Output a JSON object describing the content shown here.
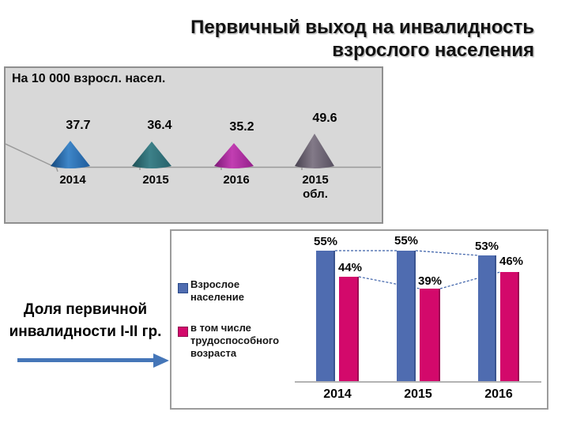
{
  "title": {
    "line1": "Первичный выход на инвалидность",
    "line2": "взрослого населения"
  },
  "rate_panel": {
    "caption": "На 10 000 взросл. насел.",
    "items": [
      {
        "value": "37.7",
        "year": "2014",
        "color": "#2d6fae"
      },
      {
        "value": "36.4",
        "year": "2015",
        "color": "#2f6f74"
      },
      {
        "value": "35.2",
        "year": "2016",
        "color": "#a82ba0"
      },
      {
        "value": "49.6",
        "year": "2015 обл.",
        "color": "#6e6472"
      }
    ]
  },
  "share_chart": {
    "legend": [
      {
        "label": "Взрослое население",
        "color": "#4f6cb0"
      },
      {
        "label": "в том числе трудоспособного возраста",
        "color": "#d3096b"
      }
    ],
    "groups": [
      {
        "year": "2014",
        "adult_label": "55%",
        "working_label": "44%"
      },
      {
        "year": "2015",
        "adult_label": "55%",
        "working_label": "39%"
      },
      {
        "year": "2016",
        "adult_label": "53%",
        "working_label": "46%"
      }
    ]
  },
  "left_caption": {
    "line1": "Доля первичной",
    "line2": "инвалидности I-II гр."
  },
  "accent_colors": {
    "arrow": "#4576b8",
    "dashed_connector": "#3a5fa8",
    "panel_background": "#d8d8d8"
  },
  "chart_data": [
    {
      "type": "bar",
      "subtype": "cone-pictogram",
      "title": "На 10 000 взросл. насел.",
      "categories": [
        "2014",
        "2015",
        "2016",
        "2015 обл."
      ],
      "values": [
        37.7,
        36.4,
        35.2,
        49.6
      ],
      "grid": false,
      "legend_position": "none"
    },
    {
      "type": "bar",
      "categories": [
        "2014",
        "2015",
        "2016"
      ],
      "series": [
        {
          "name": "Взрослое население",
          "values": [
            55,
            55,
            53
          ],
          "color": "#4f6cb0"
        },
        {
          "name": "в том числе трудоспособного возраста",
          "values": [
            44,
            39,
            46
          ],
          "color": "#d3096b"
        }
      ],
      "unit": "%",
      "ylim": [
        0,
        60
      ],
      "grid": false,
      "legend_position": "left",
      "bar_top_connectors": "dashed"
    }
  ]
}
